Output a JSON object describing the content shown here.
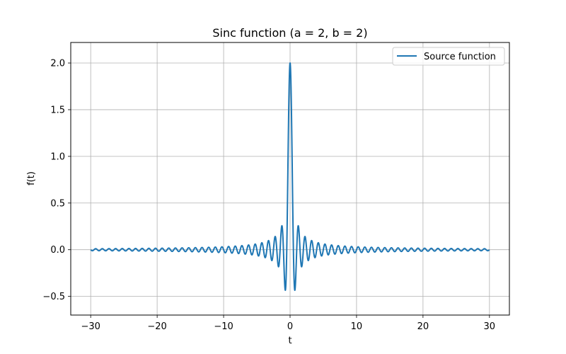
{
  "chart_data": {
    "type": "line",
    "title": "Sinc function (a = 2, b = 2)",
    "xlabel": "t",
    "ylabel": "f(t)",
    "xlim": [
      -33,
      33
    ],
    "ylim": [
      -0.7,
      2.22
    ],
    "xticks": [
      -30,
      -20,
      -10,
      0,
      10,
      20,
      30
    ],
    "xtick_labels": [
      "−30",
      "−20",
      "−10",
      "0",
      "10",
      "20",
      "30"
    ],
    "yticks": [
      -0.5,
      0.0,
      0.5,
      1.0,
      1.5,
      2.0
    ],
    "ytick_labels": [
      "−0.5",
      "0.0",
      "0.5",
      "1.0",
      "1.5",
      "2.0"
    ],
    "grid": true,
    "legend_position": "top-right",
    "series": [
      {
        "name": "Source function",
        "color": "#1f77b4",
        "function": "a*sin(b*pi*t)/(b*pi*t)",
        "params": {
          "a": 2,
          "b": 2
        },
        "x_range": [
          -30,
          30
        ],
        "samples": 3001
      }
    ]
  }
}
